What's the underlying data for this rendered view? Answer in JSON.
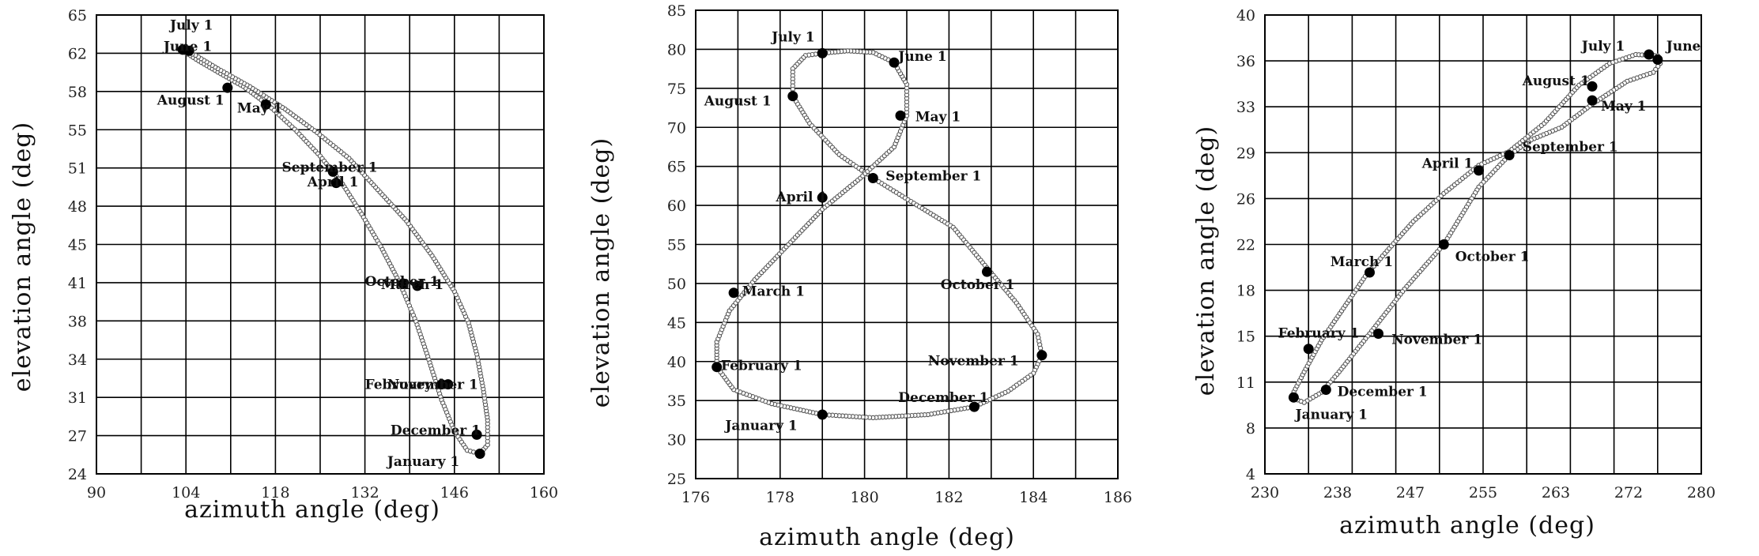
{
  "chart_data": [
    {
      "type": "scatter",
      "xlabel": "azimuth angle  (deg)",
      "ylabel": "elevation angle  (deg)",
      "xlim": [
        90,
        160
      ],
      "ylim": [
        24,
        65
      ],
      "xticks": [
        "90",
        "104",
        "118",
        "132",
        "146",
        "160"
      ],
      "yticks": [
        "24",
        "27",
        "31",
        "34",
        "38",
        "41",
        "45",
        "48",
        "51",
        "55",
        "58",
        "62",
        "65"
      ],
      "grid": true,
      "loop": [
        [
          103.5,
          61.8
        ],
        [
          106,
          60.9
        ],
        [
          109,
          59.9
        ],
        [
          113,
          58.6
        ],
        [
          117,
          56.9
        ],
        [
          121,
          54.8
        ],
        [
          125,
          52.4
        ],
        [
          128.5,
          49.9
        ],
        [
          131.5,
          47.2
        ],
        [
          134.5,
          44.3
        ],
        [
          137.5,
          41.0
        ],
        [
          140,
          37.6
        ],
        [
          142,
          34.2
        ],
        [
          144,
          30.6
        ],
        [
          146,
          27.8
        ],
        [
          148,
          26.1
        ],
        [
          150,
          25.8
        ],
        [
          151.2,
          26.6
        ],
        [
          151.2,
          28.8
        ],
        [
          150.5,
          31.6
        ],
        [
          149.5,
          34.7
        ],
        [
          148.2,
          37.5
        ],
        [
          146,
          40.3
        ],
        [
          142.5,
          43.5
        ],
        [
          138.5,
          46.6
        ],
        [
          134,
          49.4
        ],
        [
          129.5,
          52.2
        ],
        [
          124.5,
          54.5
        ],
        [
          119.5,
          56.6
        ],
        [
          114,
          58.6
        ],
        [
          109,
          60.2
        ],
        [
          105.5,
          61.4
        ],
        [
          103.5,
          61.8
        ]
      ],
      "points": [
        {
          "label": "January 1",
          "x": 150.0,
          "y": 25.8
        },
        {
          "label": "February 1",
          "x": 145.0,
          "y": 32.0
        },
        {
          "label": "March 1",
          "x": 140.2,
          "y": 40.8
        },
        {
          "label": "April 1",
          "x": 127.5,
          "y": 50.0
        },
        {
          "label": "May 1",
          "x": 116.5,
          "y": 57.0
        },
        {
          "label": "June 1",
          "x": 104.5,
          "y": 61.8
        },
        {
          "label": "July 1",
          "x": 103.5,
          "y": 61.9
        },
        {
          "label": "August 1",
          "x": 110.5,
          "y": 58.5
        },
        {
          "label": "September 1",
          "x": 127.0,
          "y": 51.0
        },
        {
          "label": "October 1",
          "x": 138.0,
          "y": 41.0
        },
        {
          "label": "November 1",
          "x": 144.0,
          "y": 32.0
        },
        {
          "label": "December 1",
          "x": 149.5,
          "y": 27.5
        }
      ],
      "annotations": [
        {
          "text": "July 1",
          "x": 101.5,
          "y": 63.7
        },
        {
          "text": "June 1",
          "x": 100.5,
          "y": 61.8
        },
        {
          "text": "August 1",
          "x": 99.5,
          "y": 57.0
        },
        {
          "text": "May 1",
          "x": 112.0,
          "y": 56.3
        },
        {
          "text": "September 1",
          "x": 119.0,
          "y": 51.0
        },
        {
          "text": "April 1",
          "x": 123.0,
          "y": 49.7
        },
        {
          "text": "October 1",
          "x": 132.0,
          "y": 40.8
        },
        {
          "text": "March 1",
          "x": 134.5,
          "y": 40.5
        },
        {
          "text": "February 1",
          "x": 132.0,
          "y": 31.6
        },
        {
          "text": "November 1",
          "x": 135.5,
          "y": 31.6
        },
        {
          "text": "December 1",
          "x": 136.0,
          "y": 27.5
        },
        {
          "text": "January 1",
          "x": 135.5,
          "y": 24.7
        }
      ]
    },
    {
      "type": "scatter",
      "xlabel": "azimuth angle  (deg)",
      "ylabel": "elevation angle  (deg)",
      "xlim": [
        176,
        186
      ],
      "ylim": [
        25,
        85
      ],
      "xticks": [
        "176",
        "178",
        "180",
        "182",
        "184",
        "186"
      ],
      "yticks": [
        "25",
        "30",
        "35",
        "40",
        "45",
        "50",
        "55",
        "60",
        "65",
        "70",
        "75",
        "80",
        "85"
      ],
      "grid": true,
      "loop": [
        [
          179.0,
          79.5
        ],
        [
          178.6,
          79.2
        ],
        [
          178.3,
          77.5
        ],
        [
          178.3,
          74.0
        ],
        [
          178.7,
          70.5
        ],
        [
          179.4,
          66.5
        ],
        [
          180.2,
          63.5
        ],
        [
          181.1,
          60.5
        ],
        [
          182.1,
          57.2
        ],
        [
          182.9,
          52.0
        ],
        [
          183.6,
          47.5
        ],
        [
          184.1,
          43.5
        ],
        [
          184.2,
          40.8
        ],
        [
          184.0,
          38.5
        ],
        [
          183.4,
          36.2
        ],
        [
          182.6,
          34.2
        ],
        [
          181.5,
          33.2
        ],
        [
          180.2,
          32.8
        ],
        [
          179.0,
          33.2
        ],
        [
          177.8,
          34.6
        ],
        [
          176.9,
          36.4
        ],
        [
          176.5,
          39.3
        ],
        [
          176.5,
          42.5
        ],
        [
          176.8,
          46.5
        ],
        [
          177.4,
          50.5
        ],
        [
          178.2,
          55.0
        ],
        [
          179.0,
          59.5
        ],
        [
          179.9,
          63.5
        ],
        [
          180.7,
          67.5
        ],
        [
          181.0,
          71.5
        ],
        [
          181.0,
          75.5
        ],
        [
          180.7,
          78.3
        ],
        [
          180.2,
          79.6
        ],
        [
          179.6,
          79.8
        ],
        [
          179.0,
          79.5
        ]
      ],
      "points": [
        {
          "label": "January 1",
          "x": 179.0,
          "y": 33.2
        },
        {
          "label": "February 1",
          "x": 176.5,
          "y": 39.3
        },
        {
          "label": "March 1",
          "x": 176.9,
          "y": 48.8
        },
        {
          "label": "April 1",
          "x": 179.0,
          "y": 61.0
        },
        {
          "label": "May 1",
          "x": 180.85,
          "y": 71.5
        },
        {
          "label": "June 1",
          "x": 180.7,
          "y": 78.3
        },
        {
          "label": "July 1",
          "x": 179.0,
          "y": 79.5
        },
        {
          "label": "August 1",
          "x": 178.3,
          "y": 74.0
        },
        {
          "label": "September 1",
          "x": 180.2,
          "y": 63.5
        },
        {
          "label": "October 1",
          "x": 182.9,
          "y": 51.5
        },
        {
          "label": "November 1",
          "x": 184.2,
          "y": 40.8
        },
        {
          "label": "December 1",
          "x": 182.6,
          "y": 34.2
        }
      ],
      "annotations": [
        {
          "text": "July 1",
          "x": 177.8,
          "y": 81.0
        },
        {
          "text": "June 1",
          "x": 180.8,
          "y": 78.5
        },
        {
          "text": "August 1",
          "x": 176.2,
          "y": 72.8
        },
        {
          "text": "May 1",
          "x": 181.2,
          "y": 70.8
        },
        {
          "text": "September 1",
          "x": 180.5,
          "y": 63.2
        },
        {
          "text": "April 1",
          "x": 177.9,
          "y": 60.5
        },
        {
          "text": "October 1",
          "x": 181.8,
          "y": 49.3
        },
        {
          "text": "March 1",
          "x": 177.1,
          "y": 48.4
        },
        {
          "text": "February 1",
          "x": 176.6,
          "y": 38.9
        },
        {
          "text": "November 1",
          "x": 181.5,
          "y": 39.5
        },
        {
          "text": "December 1",
          "x": 180.8,
          "y": 34.8
        },
        {
          "text": "January 1",
          "x": 176.7,
          "y": 31.2
        }
      ]
    },
    {
      "type": "scatter",
      "xlabel": "azimuth angle  (deg)",
      "ylabel": "elevation angle  (deg)",
      "xlim": [
        230,
        280
      ],
      "ylim": [
        4,
        40
      ],
      "xticks": [
        "230",
        "238",
        "247",
        "255",
        "263",
        "272",
        "280"
      ],
      "yticks": [
        "4",
        "8",
        "11",
        "15",
        "18",
        "22",
        "26",
        "29",
        "33",
        "36",
        "40"
      ],
      "grid": true,
      "loop": [
        [
          233.0,
          10.0
        ],
        [
          234.5,
          12.0
        ],
        [
          236.5,
          14.5
        ],
        [
          239,
          17.0
        ],
        [
          241.5,
          19.5
        ],
        [
          244,
          21.5
        ],
        [
          247,
          23.8
        ],
        [
          250.5,
          26.0
        ],
        [
          254.5,
          28.2
        ],
        [
          258,
          29.3
        ],
        [
          262,
          31.5
        ],
        [
          266,
          34.5
        ],
        [
          269.5,
          36.2
        ],
        [
          272.5,
          36.9
        ],
        [
          275,
          36.8
        ],
        [
          275.3,
          36.2
        ],
        [
          274.5,
          35.5
        ],
        [
          271.5,
          34.8
        ],
        [
          267.5,
          33.0
        ],
        [
          264,
          31.2
        ],
        [
          260.5,
          30.2
        ],
        [
          258,
          29.0
        ],
        [
          254.5,
          26.5
        ],
        [
          250.5,
          22.0
        ],
        [
          246,
          18.5
        ],
        [
          242,
          15.0
        ],
        [
          238.5,
          12.0
        ],
        [
          236.5,
          10.4
        ],
        [
          234.5,
          9.6
        ],
        [
          233.0,
          10.0
        ]
      ],
      "points": [
        {
          "label": "January 1",
          "x": 233.3,
          "y": 10.0
        },
        {
          "label": "February 1",
          "x": 235.0,
          "y": 13.8
        },
        {
          "label": "March 1",
          "x": 242.0,
          "y": 19.8
        },
        {
          "label": "April 1",
          "x": 254.5,
          "y": 27.8
        },
        {
          "label": "May 1",
          "x": 267.5,
          "y": 33.3
        },
        {
          "label": "June 1",
          "x": 275.0,
          "y": 36.5
        },
        {
          "label": "July 1",
          "x": 274.0,
          "y": 36.9
        },
        {
          "label": "August 1",
          "x": 267.5,
          "y": 34.4
        },
        {
          "label": "September 1",
          "x": 258.0,
          "y": 29.0
        },
        {
          "label": "October 1",
          "x": 250.5,
          "y": 22.0
        },
        {
          "label": "November 1",
          "x": 243.0,
          "y": 15.0
        },
        {
          "label": "December 1",
          "x": 237.0,
          "y": 10.6
        }
      ],
      "annotations": [
        {
          "text": "July 1",
          "x": 266.3,
          "y": 37.2
        },
        {
          "text": "June",
          "x": 276.0,
          "y": 37.2
        },
        {
          "text": "August 1",
          "x": 259.5,
          "y": 34.5
        },
        {
          "text": "May 1",
          "x": 268.5,
          "y": 32.5
        },
        {
          "text": "September 1",
          "x": 259.5,
          "y": 29.3
        },
        {
          "text": "April 1",
          "x": 248.0,
          "y": 28.0
        },
        {
          "text": "March 1",
          "x": 237.5,
          "y": 20.3
        },
        {
          "text": "October 1",
          "x": 251.8,
          "y": 20.7
        },
        {
          "text": "February 1",
          "x": 231.5,
          "y": 14.7
        },
        {
          "text": "November 1",
          "x": 244.5,
          "y": 14.2
        },
        {
          "text": "December 1",
          "x": 238.3,
          "y": 10.1
        },
        {
          "text": "January 1",
          "x": 233.5,
          "y": 8.3
        }
      ]
    }
  ]
}
